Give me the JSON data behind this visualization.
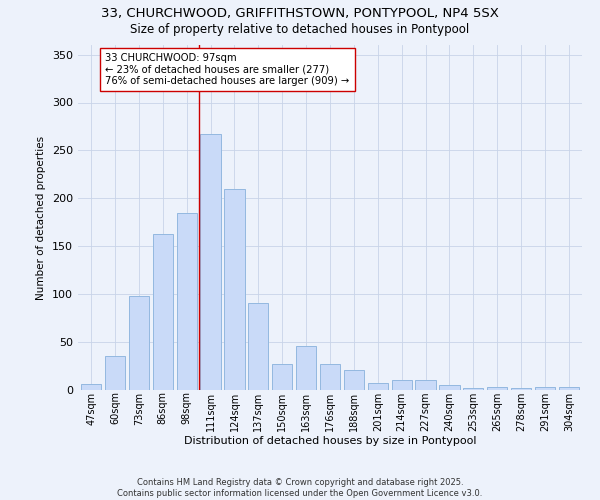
{
  "title_line1": "33, CHURCHWOOD, GRIFFITHSTOWN, PONTYPOOL, NP4 5SX",
  "title_line2": "Size of property relative to detached houses in Pontypool",
  "xlabel": "Distribution of detached houses by size in Pontypool",
  "ylabel": "Number of detached properties",
  "categories": [
    "47sqm",
    "60sqm",
    "73sqm",
    "86sqm",
    "98sqm",
    "111sqm",
    "124sqm",
    "137sqm",
    "150sqm",
    "163sqm",
    "176sqm",
    "188sqm",
    "201sqm",
    "214sqm",
    "227sqm",
    "240sqm",
    "253sqm",
    "265sqm",
    "278sqm",
    "291sqm",
    "304sqm"
  ],
  "values": [
    6,
    35,
    98,
    163,
    185,
    267,
    210,
    91,
    27,
    46,
    27,
    21,
    7,
    10,
    10,
    5,
    2,
    3,
    2,
    3,
    3
  ],
  "bar_color": "#c9daf8",
  "bar_edge_color": "#93b8e0",
  "grid_color": "#c8d4e8",
  "bg_color": "#edf2fb",
  "vline_x_index": 4.5,
  "vline_color": "#cc0000",
  "annotation_text": "33 CHURCHWOOD: 97sqm\n← 23% of detached houses are smaller (277)\n76% of semi-detached houses are larger (909) →",
  "footer": "Contains HM Land Registry data © Crown copyright and database right 2025.\nContains public sector information licensed under the Open Government Licence v3.0.",
  "ylim": [
    0,
    360
  ],
  "yticks": [
    0,
    50,
    100,
    150,
    200,
    250,
    300,
    350
  ]
}
